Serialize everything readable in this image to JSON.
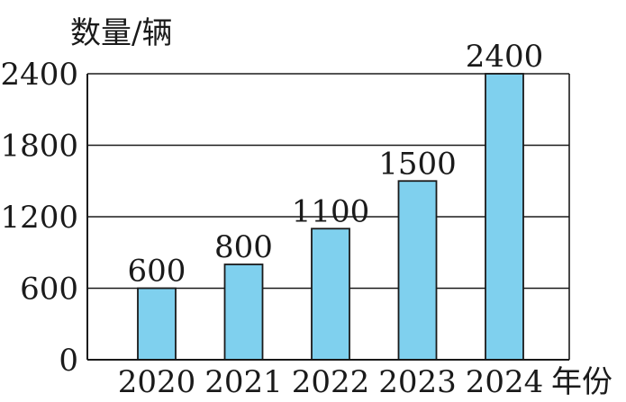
{
  "chart_data": {
    "type": "bar",
    "title": "",
    "ylabel": "数量/辆",
    "xlabel": "年份",
    "categories": [
      "2020",
      "2021",
      "2022",
      "2023",
      "2024"
    ],
    "values": [
      600,
      800,
      1100,
      1500,
      2400
    ],
    "data_labels": [
      "600",
      "800",
      "1100",
      "1500",
      "2400"
    ],
    "yticks": [
      0,
      600,
      1200,
      1800,
      2400
    ],
    "ytick_labels": [
      "0",
      "600",
      "1200",
      "1800",
      "2400"
    ],
    "ylim": [
      0,
      2400
    ],
    "grid": true,
    "legend": "none",
    "colors": {
      "bar_fill": "#7fd0ee",
      "bar_stroke": "#1a1a1a",
      "grid": "#1a1a1a",
      "axis": "#1a1a1a",
      "text": "#1a1a1a"
    }
  }
}
